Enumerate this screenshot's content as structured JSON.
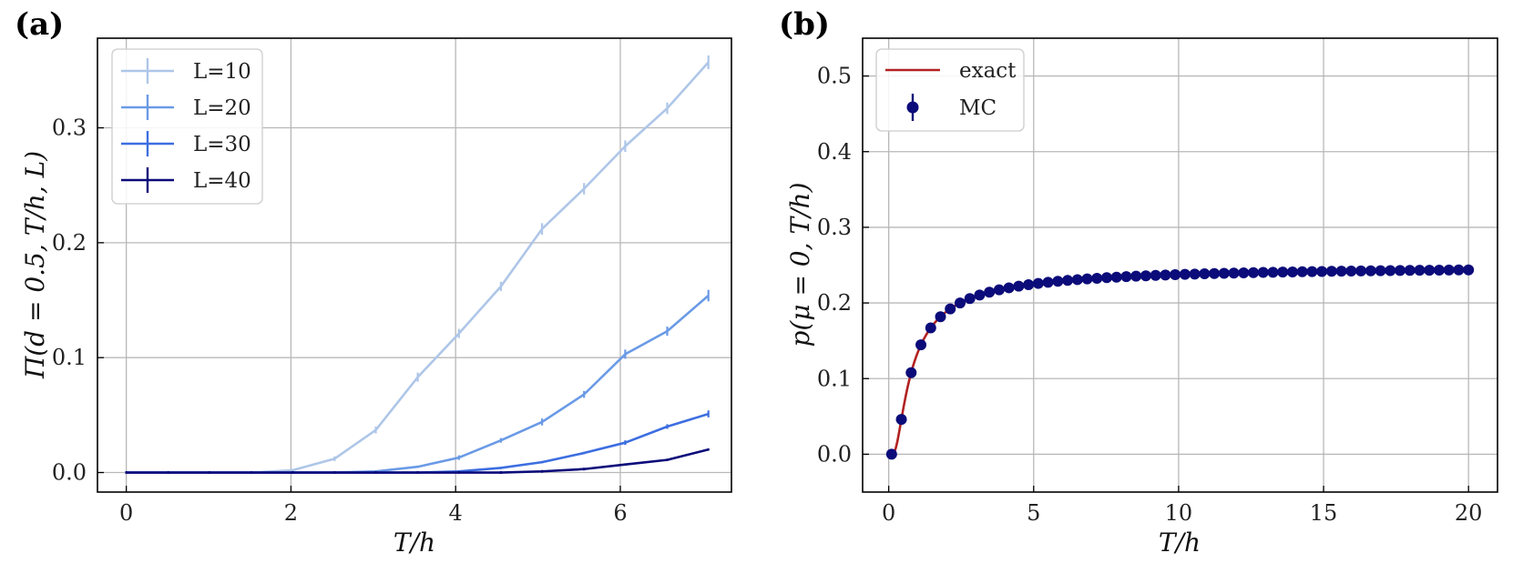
{
  "chart_data": [
    {
      "panel_label": "(a)",
      "type": "line",
      "xlabel": "T/h",
      "ylabel": "Π(d = 0.5, T/h, L)",
      "xlim": [
        -0.35,
        7.35
      ],
      "ylim": [
        -0.017,
        0.378
      ],
      "xticks": [
        0,
        2,
        4,
        6
      ],
      "xtick_labels": [
        "0",
        "2",
        "4",
        "6"
      ],
      "yticks": [
        0.0,
        0.1,
        0.2,
        0.3
      ],
      "ytick_labels": [
        "0.0",
        "0.1",
        "0.2",
        "0.3"
      ],
      "grid": true,
      "legend_position": "top-left",
      "x": [
        0.0,
        0.51,
        1.01,
        1.52,
        2.02,
        2.53,
        3.03,
        3.54,
        4.04,
        4.55,
        5.05,
        5.56,
        6.06,
        6.57,
        7.07
      ],
      "series": [
        {
          "name": "L=10",
          "color": "#aec6e8",
          "values": [
            0.0,
            0.0,
            0.0,
            0.0,
            0.002,
            0.012,
            0.037,
            0.083,
            0.121,
            0.162,
            0.212,
            0.247,
            0.284,
            0.317,
            0.357
          ],
          "errors": [
            0,
            0,
            0,
            0,
            0.001,
            0.002,
            0.003,
            0.004,
            0.004,
            0.004,
            0.005,
            0.005,
            0.005,
            0.005,
            0.006
          ]
        },
        {
          "name": "L=20",
          "color": "#6a9ae6",
          "values": [
            0.0,
            0.0,
            0.0,
            0.0,
            0.0,
            0.0,
            0.001,
            0.005,
            0.013,
            0.028,
            0.044,
            0.068,
            0.103,
            0.123,
            0.154
          ],
          "errors": [
            0,
            0,
            0,
            0,
            0,
            0,
            0.001,
            0.001,
            0.002,
            0.002,
            0.003,
            0.003,
            0.004,
            0.004,
            0.005
          ]
        },
        {
          "name": "L=30",
          "color": "#3d6ee0",
          "values": [
            0.0,
            0.0,
            0.0,
            0.0,
            0.0,
            0.0,
            0.0,
            0.0,
            0.001,
            0.004,
            0.009,
            0.017,
            0.026,
            0.04,
            0.051
          ],
          "errors": [
            0,
            0,
            0,
            0,
            0,
            0,
            0,
            0,
            0.001,
            0.001,
            0.001,
            0.001,
            0.002,
            0.002,
            0.003
          ]
        },
        {
          "name": "L=40",
          "color": "#0b0b7a",
          "values": [
            0.0,
            0.0,
            0.0,
            0.0,
            0.0,
            0.0,
            0.0,
            0.0,
            0.0,
            0.0,
            0.001,
            0.003,
            0.007,
            0.011,
            0.02
          ],
          "errors": [
            0,
            0,
            0,
            0,
            0,
            0,
            0,
            0,
            0,
            0,
            0,
            0,
            0.001,
            0.001,
            0.001
          ]
        }
      ]
    },
    {
      "panel_label": "(b)",
      "type": "line+scatter",
      "xlabel": "T/h",
      "ylabel": "p(μ = 0, T/h)",
      "xlim": [
        -0.9,
        21.0
      ],
      "ylim": [
        -0.05,
        0.55
      ],
      "xticks": [
        0,
        5,
        10,
        15,
        20
      ],
      "xtick_labels": [
        "0",
        "5",
        "10",
        "15",
        "20"
      ],
      "yticks": [
        0.0,
        0.1,
        0.2,
        0.3,
        0.4,
        0.5
      ],
      "ytick_labels": [
        "0.0",
        "0.1",
        "0.2",
        "0.3",
        "0.4",
        "0.5"
      ],
      "grid": true,
      "legend_position": "top-left",
      "series": [
        {
          "name": "exact",
          "kind": "line",
          "color": "#b22222",
          "formula": "0.5 / (1 + exp(1/(T/h)))",
          "x_range": [
            0.1,
            20
          ]
        },
        {
          "name": "MC",
          "kind": "scatter",
          "color": "#0b0b7a",
          "x_range": [
            0.1,
            20
          ],
          "n_points": 60
        }
      ]
    }
  ]
}
